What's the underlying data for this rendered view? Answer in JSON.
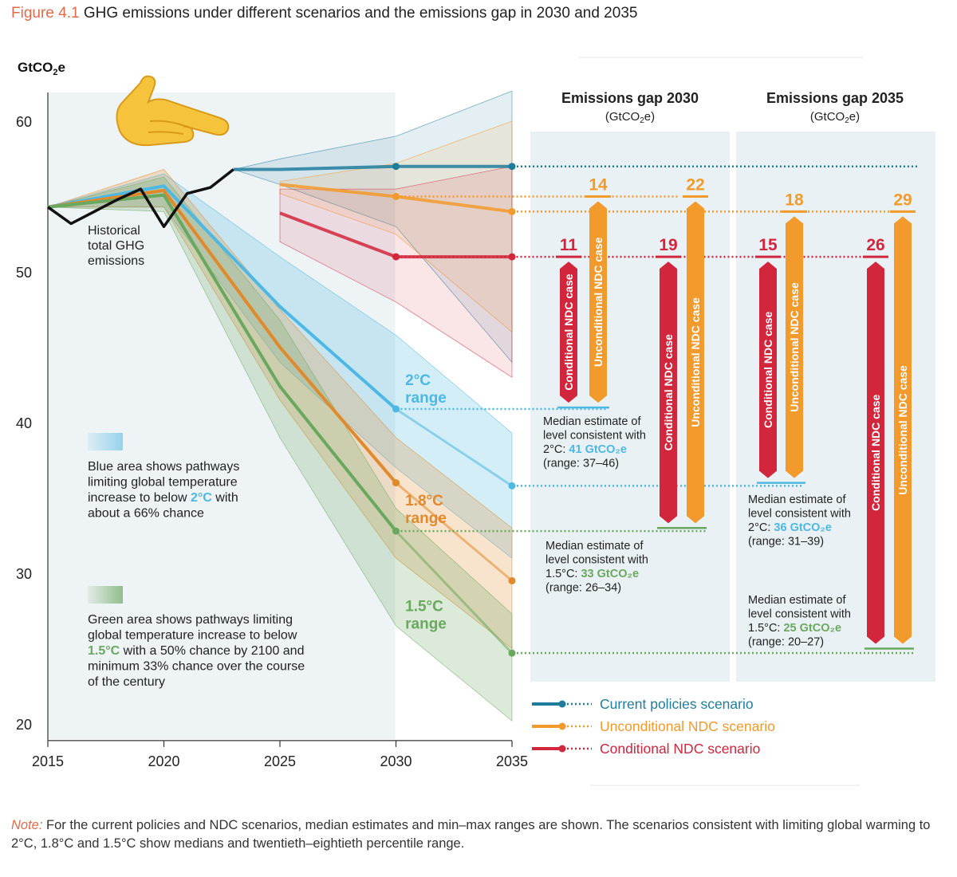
{
  "figure": {
    "label": "Figure 4.1",
    "title": "GHG emissions under different scenarios and the emissions gap in 2030 and 2035",
    "note_label": "Note:",
    "note_text": " For the current policies and NDC scenarios, median estimates and min–max ranges are shown. The scenarios consistent with limiting global warming to 2°C, 1.8°C and 1.5°C show medians and twentieth–eightieth percentile range."
  },
  "colors": {
    "current": "#1f7d9c",
    "unconditional": "#f39a2c",
    "conditional": "#d2263d",
    "two_c": "#4cb8e3",
    "one_eight": "#e08a2b",
    "one_five": "#6aa85f",
    "historical": "#111111",
    "gap_panel": "#e9f1f5",
    "hist_panel": "#eef3f6"
  },
  "chart_data": {
    "type": "line",
    "ylabel": "GtCO₂e",
    "ylabel_base": "GtCO",
    "ylabel_sub": "2",
    "ylabel_end": "e",
    "ylim": [
      19,
      63
    ],
    "xlim": [
      2015,
      2035
    ],
    "y_ticks": [
      20,
      30,
      40,
      50,
      60
    ],
    "x_ticks": [
      2015,
      2020,
      2025,
      2030,
      2035
    ],
    "historical": {
      "label_lines": [
        "Historical",
        "total GHG",
        "emissions"
      ],
      "x": [
        2015,
        2016,
        2017,
        2018,
        2019,
        2020,
        2021,
        2022,
        2023
      ],
      "y": [
        54.3,
        53.2,
        54.0,
        54.8,
        55.5,
        53.0,
        55.2,
        55.6,
        56.8
      ]
    },
    "scenarios": [
      {
        "name": "Current policies scenario",
        "color_key": "current",
        "x": [
          2023,
          2025,
          2030,
          2035
        ],
        "median": [
          56.8,
          56.8,
          57.0,
          57.0
        ],
        "min": [
          56.8,
          55.8,
          53.0,
          44.0
        ],
        "max": [
          56.8,
          57.5,
          59.0,
          62.0
        ]
      },
      {
        "name": "Unconditional NDC scenario",
        "color_key": "unconditional",
        "x": [
          2025,
          2030,
          2035
        ],
        "median": [
          55.8,
          55.0,
          54.0
        ],
        "min": [
          55.2,
          52.5,
          46.0
        ],
        "max": [
          56.0,
          57.2,
          60.0
        ]
      },
      {
        "name": "Conditional NDC scenario",
        "color_key": "conditional",
        "x": [
          2025,
          2030,
          2035
        ],
        "median": [
          53.9,
          51.0,
          51.0
        ],
        "min": [
          52.0,
          48.0,
          43.0
        ],
        "max": [
          55.5,
          55.5,
          57.0
        ]
      }
    ],
    "pathways": [
      {
        "name": "2°C",
        "label_lines": [
          "2°C",
          "range"
        ],
        "color_key": "two_c",
        "x": [
          2015,
          2020,
          2025,
          2030,
          2035
        ],
        "median": [
          54.3,
          55.7,
          47.7,
          40.9,
          35.8
        ],
        "low": [
          54.3,
          54.3,
          44.0,
          37.0,
          31.0
        ],
        "high": [
          54.3,
          56.5,
          51.0,
          45.8,
          39.3
        ]
      },
      {
        "name": "1.8°C",
        "label_lines": [
          "1.8°C",
          "range"
        ],
        "color_key": "one_eight",
        "x": [
          2015,
          2020,
          2025,
          2030,
          2035
        ],
        "median": [
          54.3,
          55.4,
          45.0,
          36.0,
          29.5
        ],
        "low": [
          54.3,
          54.3,
          41.5,
          31.0,
          25.0
        ],
        "high": [
          54.3,
          56.8,
          47.5,
          39.0,
          33.0
        ]
      },
      {
        "name": "1.5°C",
        "label_lines": [
          "1.5°C",
          "range"
        ],
        "color_key": "one_five",
        "x": [
          2015,
          2020,
          2025,
          2030,
          2035
        ],
        "median": [
          54.3,
          55.1,
          42.4,
          32.8,
          24.7
        ],
        "low": [
          54.3,
          54.0,
          39.0,
          26.5,
          20.2
        ],
        "high": [
          54.3,
          56.3,
          46.8,
          34.3,
          27.3
        ]
      }
    ],
    "gaps": [
      {
        "title": "Emissions gap 2030",
        "unit_base": "(GtCO",
        "unit_sub": "2",
        "unit_end": "e)",
        "bars": [
          {
            "label": "Conditional NDC case",
            "value": "11",
            "from": 51,
            "to": 41,
            "color_key": "conditional"
          },
          {
            "label": "Unconditional NDC case",
            "value": "14",
            "from": 55,
            "to": 41,
            "color_key": "unconditional"
          },
          {
            "label": "Conditional NDC case",
            "value": "19",
            "from": 51,
            "to": 33,
            "color_key": "conditional"
          },
          {
            "label": "Unconditional NDC case",
            "value": "22",
            "from": 55,
            "to": 33,
            "color_key": "unconditional"
          }
        ],
        "median_notes": [
          {
            "lines": [
              "Median estimate of",
              "level consistent with"
            ],
            "prefix": "2°C: ",
            "value": "41 GtCO₂e",
            "range": "(range: 37–46)",
            "color_key": "two_c"
          },
          {
            "lines": [
              "Median estimate of",
              "level consistent with"
            ],
            "prefix": "1.5°C: ",
            "value": "33 GtCO₂e",
            "range": "(range: 26–34)",
            "color_key": "one_five"
          }
        ]
      },
      {
        "title": "Emissions gap 2035",
        "unit_base": "(GtCO",
        "unit_sub": "2",
        "unit_end": "e)",
        "bars": [
          {
            "label": "Conditional NDC case",
            "value": "15",
            "from": 51,
            "to": 36,
            "color_key": "conditional"
          },
          {
            "label": "Unconditional NDC case",
            "value": "18",
            "from": 54,
            "to": 36,
            "color_key": "unconditional"
          },
          {
            "label": "Conditional NDC case",
            "value": "26",
            "from": 51,
            "to": 25,
            "color_key": "conditional"
          },
          {
            "label": "Unconditional NDC case",
            "value": "29",
            "from": 54,
            "to": 25,
            "color_key": "unconditional"
          }
        ],
        "median_notes": [
          {
            "lines": [
              "Median estimate of",
              "level consistent with"
            ],
            "prefix": "2°C: ",
            "value": "36 GtCO₂e",
            "range": "(range: 31–39)",
            "color_key": "two_c"
          },
          {
            "lines": [
              "Median estimate of",
              "level consistent with"
            ],
            "prefix": "1.5°C: ",
            "value": "25 GtCO₂e",
            "range": "(range: 20–27)",
            "color_key": "one_five"
          }
        ]
      }
    ],
    "legend": [
      "Current policies scenario",
      "Unconditional NDC scenario",
      "Conditional NDC scenario"
    ],
    "annotations": {
      "blue_lines": [
        "Blue area shows pathways",
        "limiting global temperature"
      ],
      "blue_line3_pre": "increase to below ",
      "blue_line3_hi": "2°C",
      "blue_line3_post": " with",
      "blue_line4": "about a 66% chance",
      "green_lines": [
        "Green area shows pathways limiting",
        "global temperature increase to below"
      ],
      "green_line3_hi": "1.5°C",
      "green_line3_post": " with a 50% chance by 2100 and",
      "green_lines_tail": [
        "minimum 33% chance over the course",
        "of the century"
      ]
    }
  }
}
